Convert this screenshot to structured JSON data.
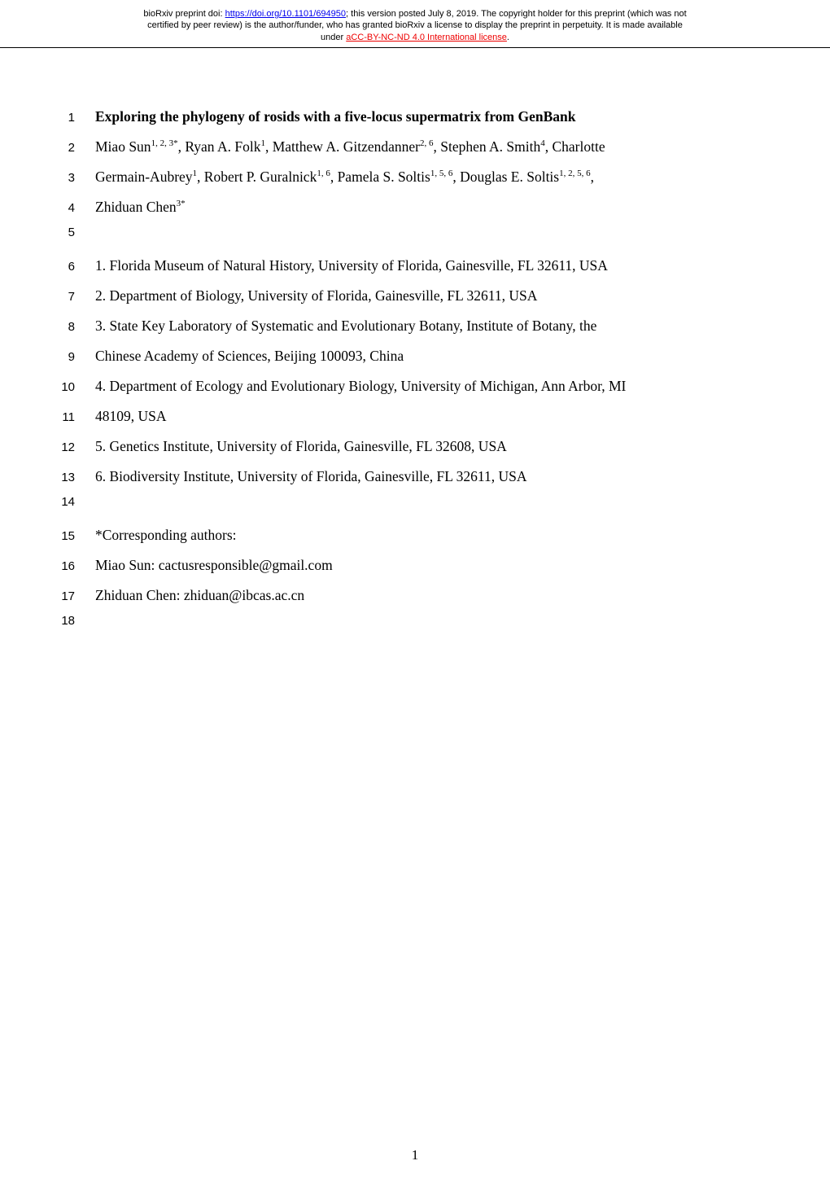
{
  "header": {
    "line1_prefix": "bioRxiv preprint doi: ",
    "doi_url": "https://doi.org/10.1101/694950",
    "line1_suffix": "; this version posted July 8, 2019. The copyright holder for this preprint (which was not",
    "line2": "certified by peer review) is the author/funder, who has granted bioRxiv a license to display the preprint in perpetuity. It is made available",
    "line3_prefix": "under ",
    "license_text": "aCC-BY-NC-ND 4.0 International license",
    "line3_suffix": "."
  },
  "lines": {
    "l1": "Exploring the phylogeny of rosids with a five-locus supermatrix from GenBank",
    "l2_a": "Miao Sun",
    "l2_sup1": "1, 2, 3*",
    "l2_b": ", Ryan A. Folk",
    "l2_sup2": "1",
    "l2_c": ", Matthew A. Gitzendanner",
    "l2_sup3": "2, 6",
    "l2_d": ", Stephen A. Smith",
    "l2_sup4": "4",
    "l2_e": ", Charlotte",
    "l3_a": "Germain-Aubrey",
    "l3_sup1": "1",
    "l3_b": ", Robert P. Guralnick",
    "l3_sup2": "1, 6",
    "l3_c": ", Pamela S. Soltis",
    "l3_sup3": "1, 5, 6",
    "l3_d": ", Douglas E. Soltis",
    "l3_sup4": "1, 2, 5, 6",
    "l3_e": ",",
    "l4_a": "Zhiduan Chen",
    "l4_sup": "3*",
    "l6": "1. Florida Museum of Natural History, University of Florida, Gainesville, FL 32611, USA",
    "l7": "2. Department of Biology, University of Florida, Gainesville, FL 32611, USA",
    "l8": "3. State Key Laboratory of Systematic and Evolutionary Botany, Institute of Botany, the",
    "l9": "Chinese Academy of Sciences, Beijing 100093, China",
    "l10": "4. Department of Ecology and Evolutionary Biology, University of Michigan, Ann Arbor, MI",
    "l11": "48109, USA",
    "l12": "5. Genetics Institute, University of Florida, Gainesville, FL 32608, USA",
    "l13": "6. Biodiversity Institute, University of Florida, Gainesville, FL 32611, USA",
    "l15": "*Corresponding authors:",
    "l16": "Miao Sun: cactusresponsible@gmail.com",
    "l17": "Zhiduan Chen: zhiduan@ibcas.ac.cn"
  },
  "line_numbers": {
    "n1": "1",
    "n2": "2",
    "n3": "3",
    "n4": "4",
    "n5": "5",
    "n6": "6",
    "n7": "7",
    "n8": "8",
    "n9": "9",
    "n10": "10",
    "n11": "11",
    "n12": "12",
    "n13": "13",
    "n14": "14",
    "n15": "15",
    "n16": "16",
    "n17": "17",
    "n18": "18"
  },
  "page_number": "1",
  "colors": {
    "doi_link": "#0000ee",
    "license_link": "#ee0000",
    "text": "#000000",
    "background": "#ffffff"
  },
  "typography": {
    "body_font": "Times New Roman",
    "header_font": "Arial",
    "line_number_font": "Arial",
    "body_fontsize": 17.5,
    "header_fontsize": 11,
    "line_number_fontsize": 15
  }
}
